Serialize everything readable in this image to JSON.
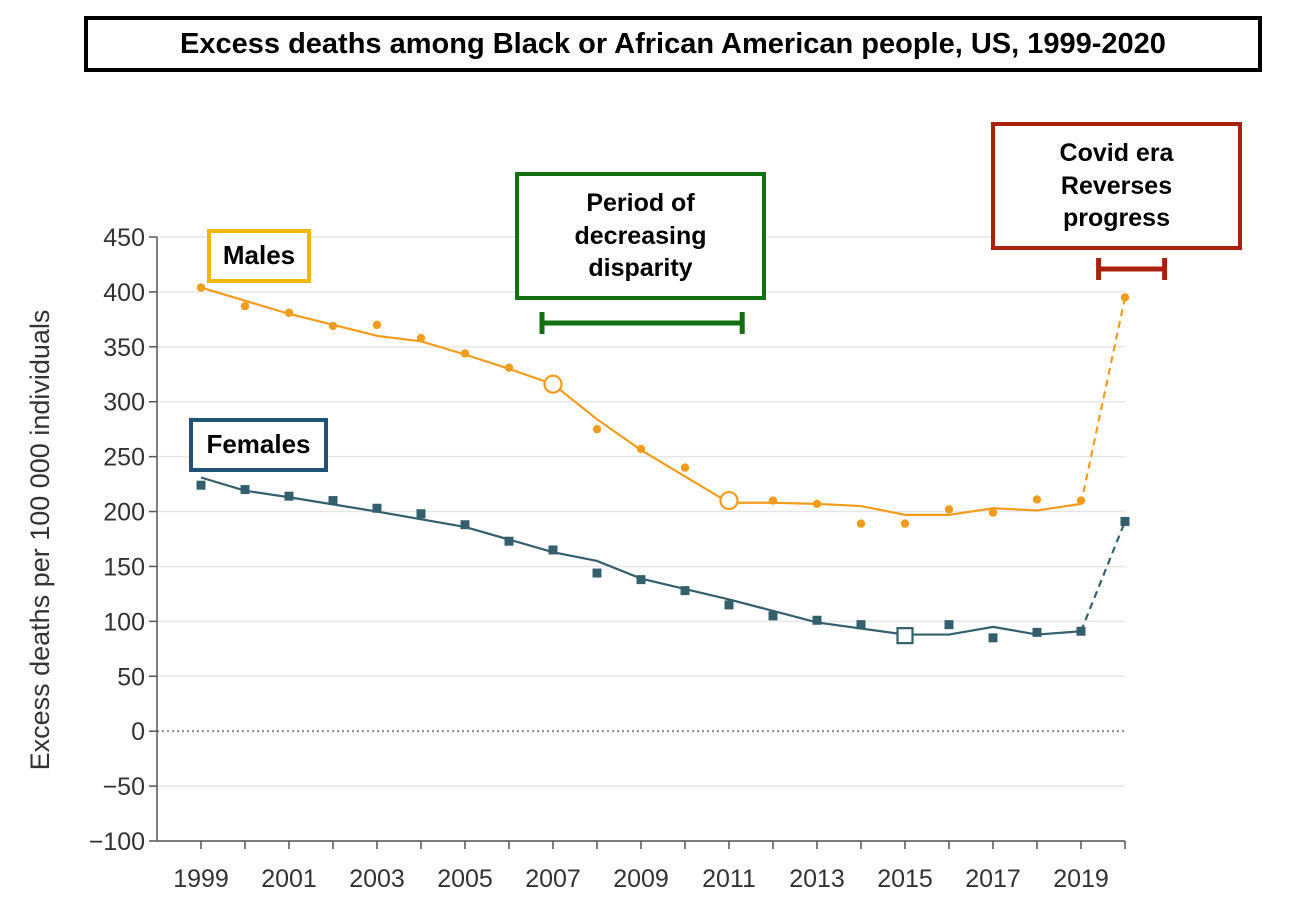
{
  "title": "Excess deaths among Black or African American people, US, 1999-2020",
  "annotations": {
    "males_label": "Males",
    "females_label": "Females",
    "period_label": "Period of\ndecreasing\ndisparity",
    "covid_label": "Covid era\nReverses\nprogress"
  },
  "colors": {
    "males": "#f19c1c",
    "females": "#345f6c",
    "males_box": "#f2b705",
    "females_box": "#1f5375",
    "period": "#117011",
    "covid": "#a8210f"
  },
  "chart_data": {
    "type": "line",
    "title": "Excess deaths among Black or African American people, US, 1999-2020",
    "xlabel": "",
    "ylabel": "Excess deaths per 100 000 individuals",
    "xlim": [
      1999,
      2020
    ],
    "ylim": [
      -100,
      450
    ],
    "x_ticks": [
      1999,
      2001,
      2003,
      2005,
      2007,
      2009,
      2011,
      2013,
      2015,
      2017,
      2019
    ],
    "y_ticks": [
      450,
      400,
      350,
      300,
      250,
      200,
      150,
      100,
      50,
      0,
      -50,
      -100
    ],
    "y_tick_labels": [
      "450",
      "400",
      "350",
      "300",
      "250",
      "200",
      "150",
      "100",
      "50",
      "0",
      "−50",
      "−100"
    ],
    "x": [
      1999,
      2000,
      2001,
      2002,
      2003,
      2004,
      2005,
      2006,
      2007,
      2008,
      2009,
      2010,
      2011,
      2012,
      2013,
      2014,
      2015,
      2016,
      2017,
      2018,
      2019,
      2020
    ],
    "grid": true,
    "zero_line": "dotted",
    "series": [
      {
        "name": "Males",
        "points": [
          404,
          387,
          381,
          369,
          370,
          358,
          344,
          331,
          316,
          275,
          257,
          240,
          210,
          210,
          207,
          189,
          189,
          202,
          199,
          211,
          210,
          395
        ],
        "trend_x": [
          1999,
          2001,
          2003,
          2004,
          2005,
          2006,
          2007,
          2008,
          2009,
          2011,
          2012,
          2013,
          2014,
          2015,
          2016,
          2017,
          2018,
          2019
        ],
        "trend": [
          404,
          380,
          360,
          355,
          343,
          330,
          316,
          284,
          256,
          208,
          208,
          207,
          205,
          197,
          197,
          203,
          201,
          207
        ],
        "projection_x": [
          2019,
          2020
        ],
        "projection": [
          207,
          395
        ],
        "joinpoints_x": [
          2007,
          2011
        ],
        "joinpoints": [
          316,
          210
        ],
        "marker": "circle"
      },
      {
        "name": "Females",
        "points": [
          224,
          220,
          214,
          210,
          203,
          198,
          188,
          173,
          165,
          144,
          138,
          128,
          115,
          105,
          101,
          97,
          87,
          97,
          85,
          90,
          91,
          191
        ],
        "trend_x": [
          1999,
          2000,
          2001,
          2003,
          2005,
          2007,
          2008,
          2009,
          2011,
          2013,
          2015,
          2016,
          2017,
          2018,
          2019
        ],
        "trend": [
          231,
          219,
          213,
          200,
          186,
          163,
          155,
          139,
          120,
          99,
          88,
          88,
          95,
          88,
          91
        ],
        "projection_x": [
          2019,
          2020
        ],
        "projection": [
          91,
          191
        ],
        "joinpoints_x": [
          2015
        ],
        "joinpoints": [
          87
        ],
        "marker": "square"
      }
    ],
    "period_brackets": [
      {
        "name": "period",
        "from": 2006.75,
        "to": 2011.3
      },
      {
        "name": "covid",
        "from": 2019.4,
        "to": 2020.9
      }
    ]
  }
}
